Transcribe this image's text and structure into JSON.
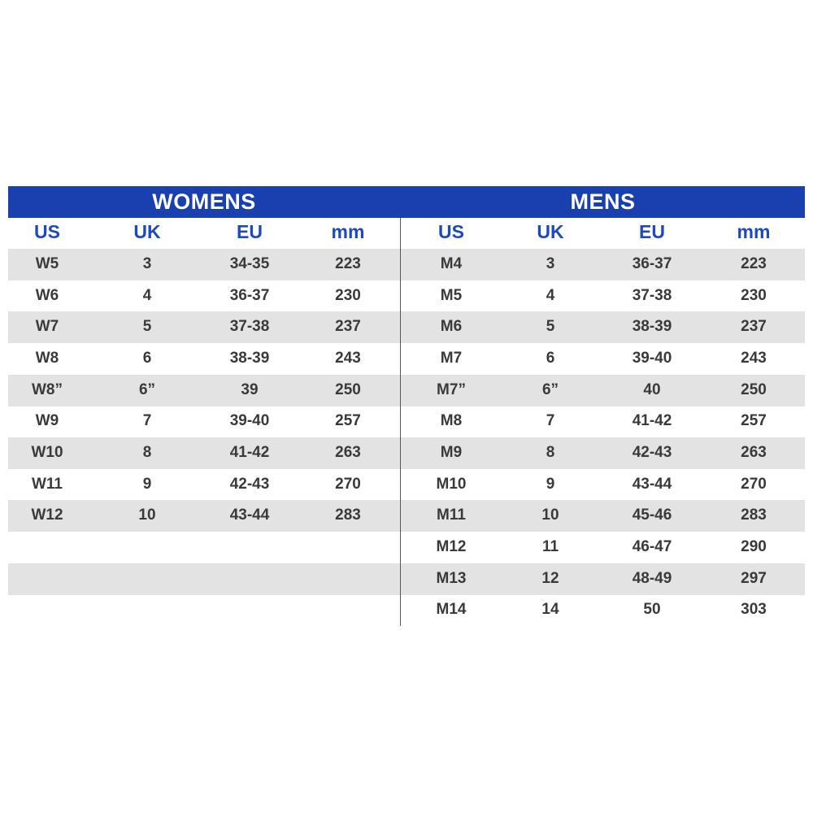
{
  "womens": {
    "title": "WOMENS",
    "columns": [
      "US",
      "UK",
      "EU",
      "mm"
    ],
    "rows": [
      [
        "W5",
        "3",
        "34-35",
        "223"
      ],
      [
        "W6",
        "4",
        "36-37",
        "230"
      ],
      [
        "W7",
        "5",
        "37-38",
        "237"
      ],
      [
        "W8",
        "6",
        "38-39",
        "243"
      ],
      [
        "W8”",
        "6”",
        "39",
        "250"
      ],
      [
        "W9",
        "7",
        "39-40",
        "257"
      ],
      [
        "W10",
        "8",
        "41-42",
        "263"
      ],
      [
        "W11",
        "9",
        "42-43",
        "270"
      ],
      [
        "W12",
        "10",
        "43-44",
        "283"
      ]
    ]
  },
  "mens": {
    "title": "MENS",
    "columns": [
      "US",
      "UK",
      "EU",
      "mm"
    ],
    "rows": [
      [
        "M4",
        "3",
        "36-37",
        "223"
      ],
      [
        "M5",
        "4",
        "37-38",
        "230"
      ],
      [
        "M6",
        "5",
        "38-39",
        "237"
      ],
      [
        "M7",
        "6",
        "39-40",
        "243"
      ],
      [
        "M7”",
        "6”",
        "40",
        "250"
      ],
      [
        "M8",
        "7",
        "41-42",
        "257"
      ],
      [
        "M9",
        "8",
        "42-43",
        "263"
      ],
      [
        "M10",
        "9",
        "43-44",
        "270"
      ],
      [
        "M11",
        "10",
        "45-46",
        "283"
      ],
      [
        "M12",
        "11",
        "46-47",
        "290"
      ],
      [
        "M13",
        "12",
        "48-49",
        "297"
      ],
      [
        "M14",
        "14",
        "50",
        "303"
      ]
    ]
  }
}
